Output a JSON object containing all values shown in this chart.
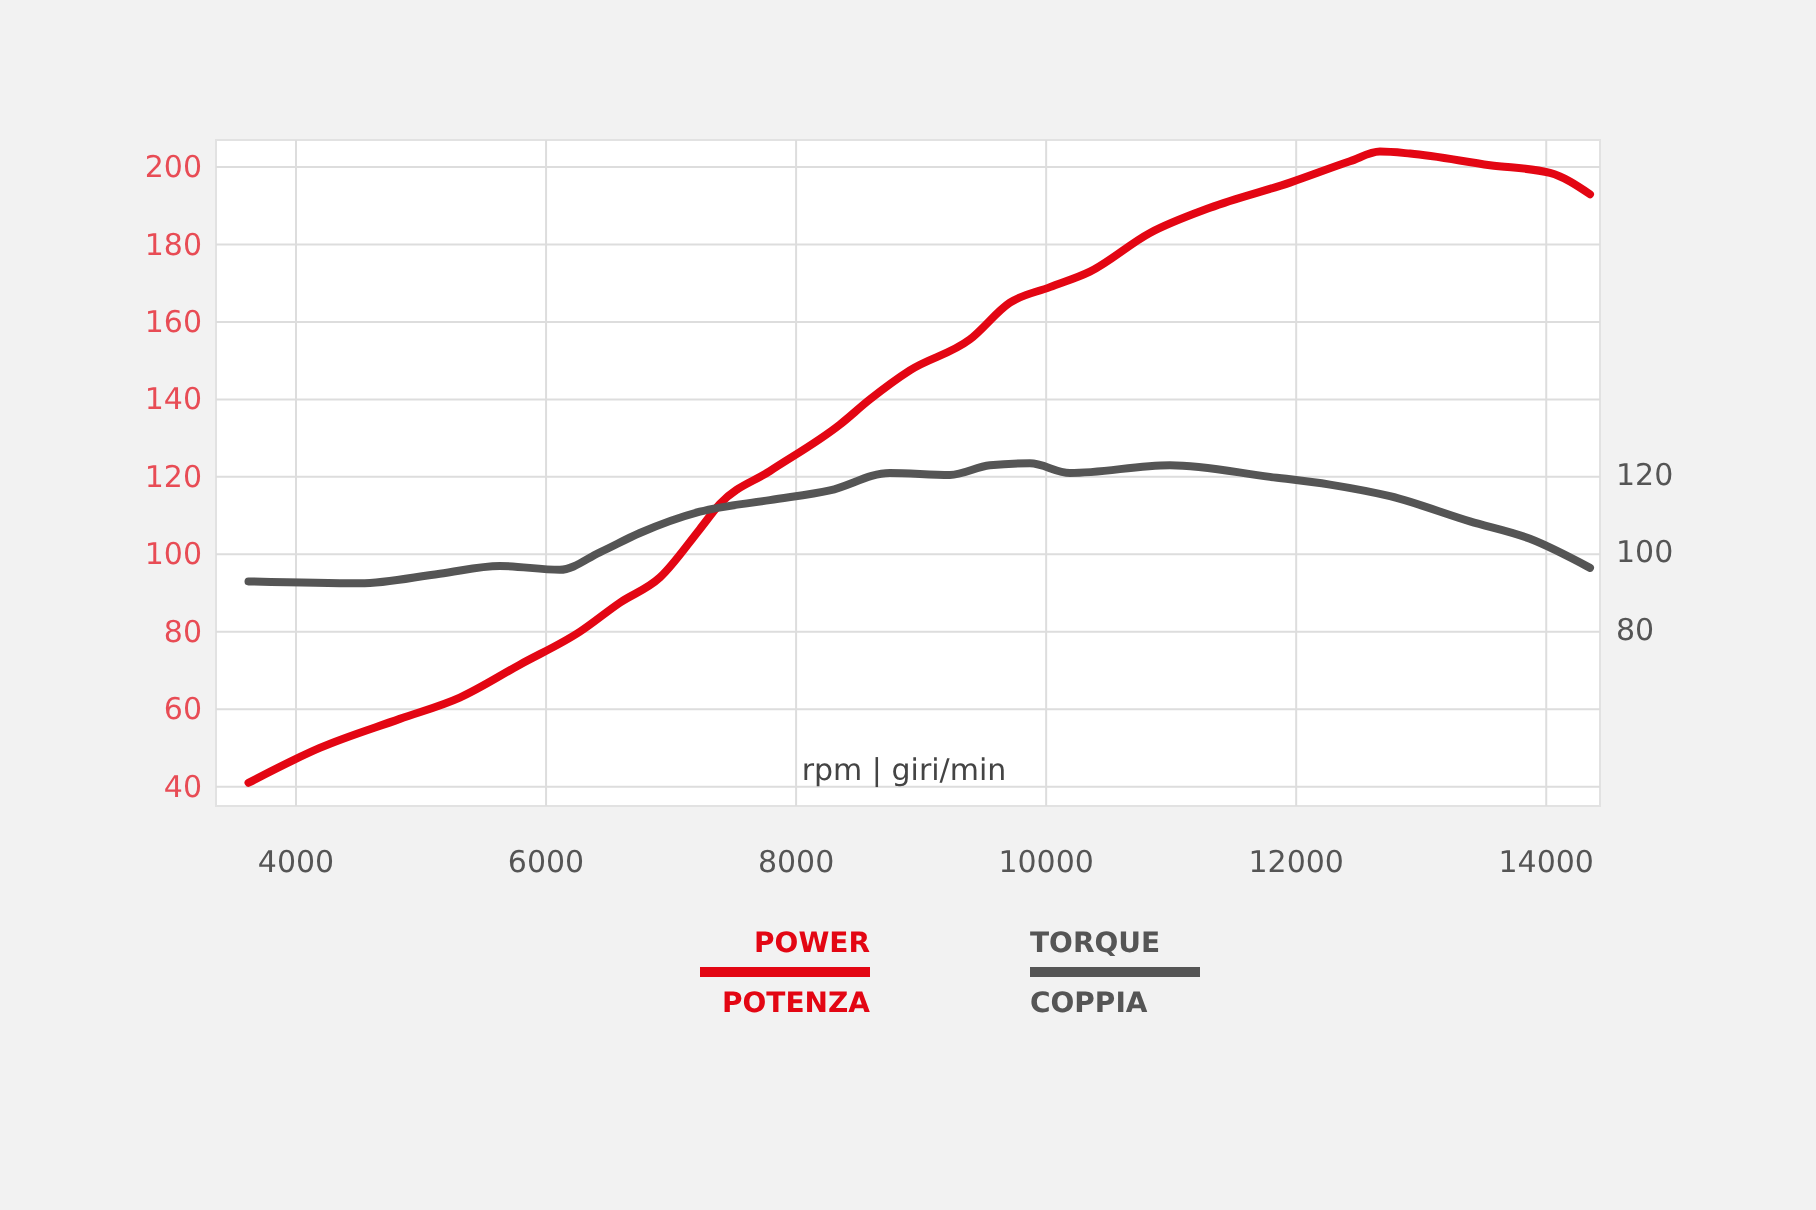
{
  "chart_data": {
    "type": "line",
    "xlabel": "rpm | giri/min",
    "xlim": [
      3360,
      14430
    ],
    "xticks": [
      4000,
      6000,
      8000,
      10000,
      12000,
      14000
    ],
    "ylim": [
      35,
      207
    ],
    "yticks": [
      40,
      60,
      80,
      100,
      120,
      140,
      160,
      180,
      200
    ],
    "y2lim": [
      34.5,
      206.5
    ],
    "y2ticks": [
      80,
      100,
      120
    ],
    "grid": true,
    "legend": "bottom",
    "line_style": "solid",
    "series": [
      {
        "name": "POWER\nPOTENZA",
        "color": "#e30613",
        "x": [
          3620,
          4190,
          4830,
          5310,
          5790,
          6270,
          6590,
          6910,
          7230,
          7390,
          7790,
          8350,
          8590,
          8910,
          9390,
          9710,
          10030,
          10350,
          10830,
          11310,
          11950,
          12430,
          12670,
          12910,
          13550,
          14030,
          14350
        ],
        "values": [
          41,
          50,
          57.5,
          63,
          71.5,
          80,
          87.5,
          94,
          106.5,
          113,
          121.5,
          133.5,
          140,
          147.5,
          155.5,
          165,
          169,
          173,
          183,
          189.5,
          196,
          201.5,
          204,
          203.5,
          200.5,
          198.5,
          193
        ]
      },
      {
        "name": "TORQUE\nCOPPIA",
        "color": "#555555",
        "axis": "y2",
        "x": [
          3620,
          4510,
          5150,
          5630,
          6110,
          6430,
          6750,
          7230,
          7790,
          8270,
          8750,
          9230,
          9550,
          9870,
          10190,
          10990,
          11790,
          12270,
          12750,
          13390,
          13870,
          14350
        ],
        "values": [
          92.5,
          92,
          94.5,
          96.5,
          95.5,
          100,
          105,
          110.5,
          113.5,
          116,
          120.5,
          120,
          122.5,
          123,
          120.5,
          122.5,
          119.5,
          117.5,
          114.5,
          108,
          103.5,
          96
        ]
      }
    ]
  }
}
